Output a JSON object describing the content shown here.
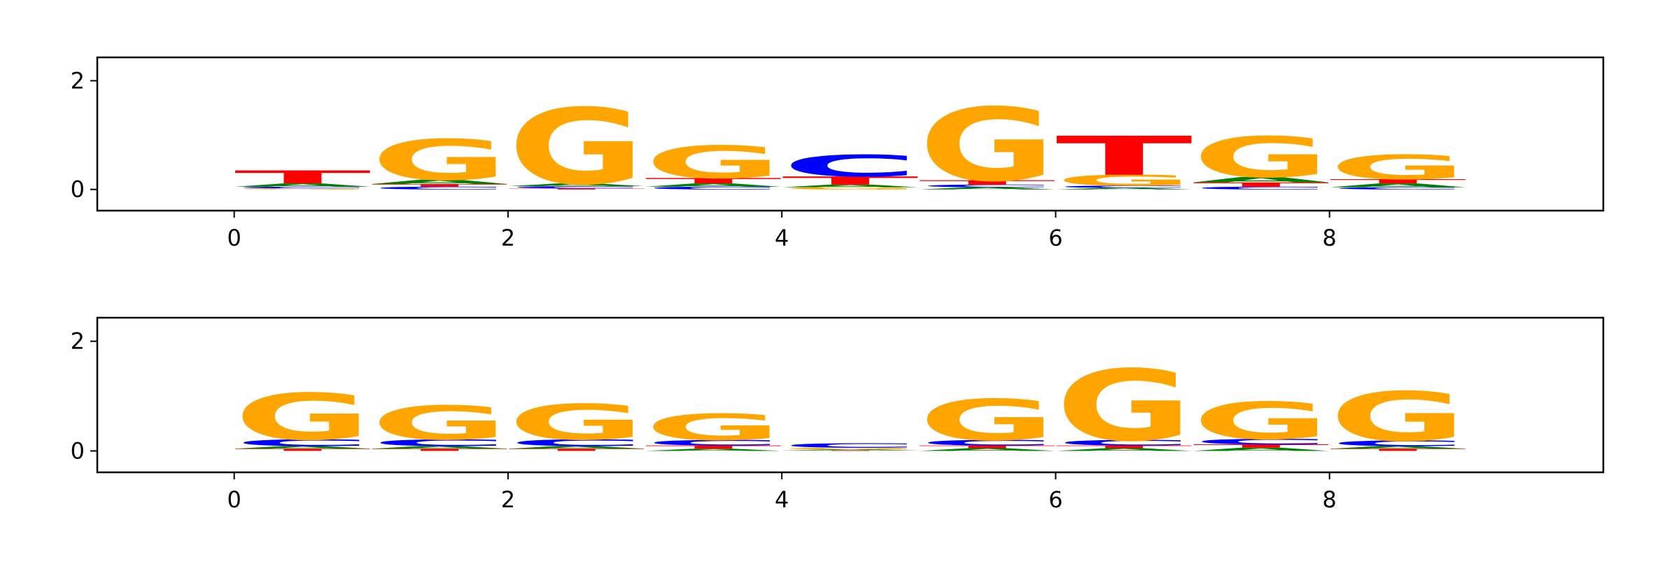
{
  "chart_data": [
    {
      "type": "logo",
      "x": [
        0,
        1,
        2,
        3,
        4,
        5,
        6,
        7,
        8
      ],
      "series": [
        {
          "name": "A",
          "color": "#008000",
          "values": [
            0.06,
            0.08,
            0.05,
            0.06,
            0.05,
            0.04,
            0.03,
            0.1,
            0.07
          ]
        },
        {
          "name": "C",
          "color": "#0000ff",
          "values": [
            0.03,
            0.05,
            0.04,
            0.05,
            0.4,
            0.05,
            0.04,
            0.05,
            0.04
          ]
        },
        {
          "name": "G",
          "color": "#ffa500",
          "values": [
            0.02,
            0.75,
            1.4,
            0.6,
            0.04,
            1.35,
            0.2,
            0.75,
            0.45
          ]
        },
        {
          "name": "T",
          "color": "#ff0000",
          "values": [
            0.24,
            0.05,
            0.02,
            0.1,
            0.15,
            0.08,
            0.72,
            0.08,
            0.08
          ]
        }
      ],
      "xlim": [
        -1,
        10
      ],
      "ylim": [
        -0.39,
        2.43
      ],
      "xticks": [
        0,
        2,
        4,
        6,
        8
      ],
      "yticks": [
        0,
        2
      ]
    },
    {
      "type": "logo",
      "x": [
        0,
        1,
        2,
        3,
        4,
        5,
        6,
        7,
        8
      ],
      "series": [
        {
          "name": "A",
          "color": "#008000",
          "values": [
            0.05,
            0.05,
            0.05,
            0.04,
            0.02,
            0.05,
            0.05,
            0.06,
            0.05
          ]
        },
        {
          "name": "C",
          "color": "#0000ff",
          "values": [
            0.12,
            0.12,
            0.12,
            0.1,
            0.08,
            0.1,
            0.1,
            0.1,
            0.1
          ]
        },
        {
          "name": "G",
          "color": "#ffa500",
          "values": [
            0.85,
            0.62,
            0.65,
            0.48,
            0.03,
            0.75,
            1.3,
            0.68,
            0.9
          ]
        },
        {
          "name": "T",
          "color": "#ff0000",
          "values": [
            0.04,
            0.04,
            0.04,
            0.06,
            0.01,
            0.05,
            0.05,
            0.06,
            0.04
          ]
        }
      ],
      "xlim": [
        -1,
        10
      ],
      "ylim": [
        -0.39,
        2.43
      ],
      "xticks": [
        0,
        2,
        4,
        6,
        8
      ],
      "yticks": [
        0,
        2
      ]
    }
  ]
}
